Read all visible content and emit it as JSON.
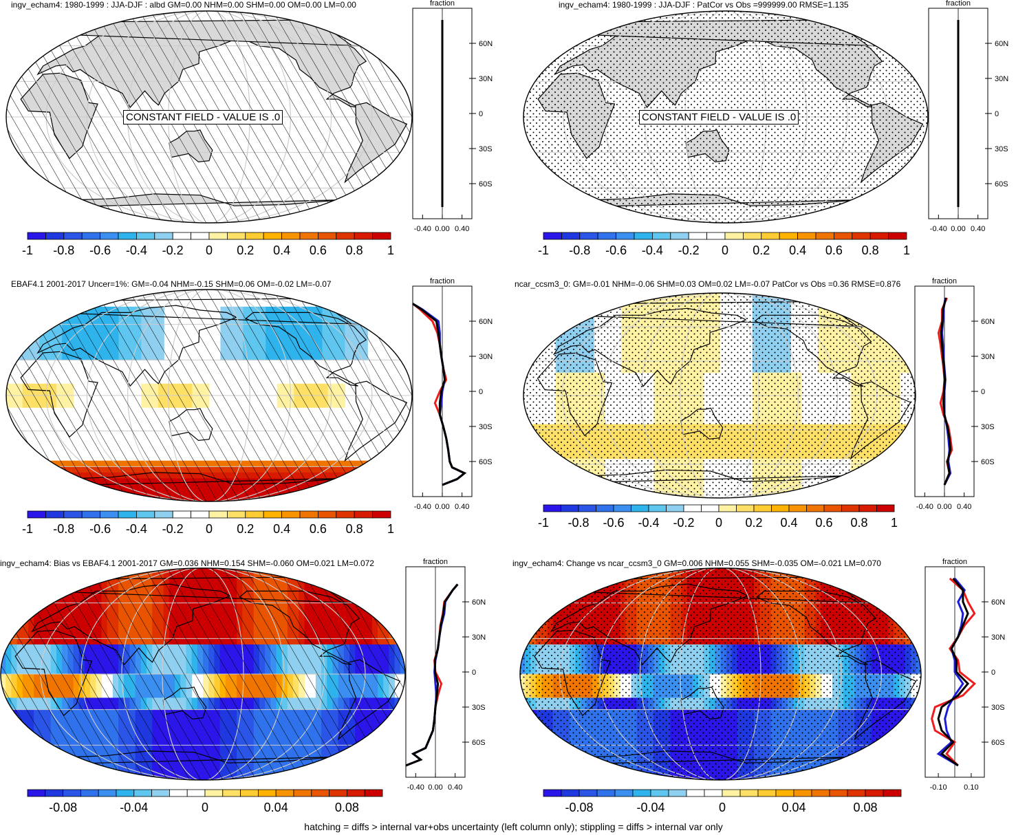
{
  "footer": "hatching = diffs > internal var+obs uncertainty (left column only); stippling = diffs > internal var only",
  "panels": [
    {
      "title": "ingv_echam4: 1980-1999 : JJA-DJF : albd GM=0.00 NHM=0.00 SHM=0.00 OM=0.00 LM=0.00",
      "overlay": "hatch",
      "constant_label": "CONSTANT FIELD - VALUE IS .0",
      "profile_label": "fraction",
      "profile_lat_ticks": [
        "60N",
        "30N",
        "0",
        "30S",
        "60S"
      ],
      "profile_x_ticks": [
        "-0.40",
        "0.00",
        "0.40"
      ],
      "colorbar_labels": [
        "-1",
        "-0.8",
        "-0.6",
        "-0.4",
        "-0.2",
        "0",
        "0.2",
        "0.4",
        "0.6",
        "0.8",
        "1"
      ]
    },
    {
      "title": "ingv_echam4: 1980-1999 : JJA-DJF : PatCor vs Obs =999999.00 RMSE=1.135",
      "overlay": "stipple",
      "constant_label": "CONSTANT FIELD - VALUE IS .0",
      "profile_label": "fraction",
      "profile_lat_ticks": [
        "60N",
        "30N",
        "0",
        "30S",
        "60S"
      ],
      "profile_x_ticks": [
        "-0.40",
        "0.00",
        "0.40"
      ],
      "colorbar_labels": [
        "-1",
        "-0.8",
        "-0.6",
        "-0.4",
        "-0.2",
        "0",
        "0.2",
        "0.4",
        "0.6",
        "0.8",
        "1"
      ]
    },
    {
      "title": "EBAF4.1 2001-2017 Uncer=1%: GM=-0.04 NHM=-0.15 SHM=0.06 OM=-0.02 LM=-0.07",
      "overlay": "hatch",
      "profile_label": "fraction",
      "profile_lat_ticks": [
        "60N",
        "30N",
        "0",
        "30S",
        "60S"
      ],
      "profile_x_ticks": [
        "-0.40",
        "0.00",
        "0.40"
      ],
      "colorbar_labels": [
        "-1",
        "-0.8",
        "-0.6",
        "-0.4",
        "-0.2",
        "0",
        "0.2",
        "0.4",
        "0.6",
        "0.8",
        "1"
      ]
    },
    {
      "title": "ncar_ccsm3_0: GM=-0.01 NHM=-0.06 SHM=0.03 OM=0.02 LM=-0.07 PatCor vs Obs =0.36 RMSE=0.876",
      "overlay": "stipple",
      "profile_label": "fraction",
      "profile_lat_ticks": [
        "60N",
        "30N",
        "0",
        "30S",
        "60S"
      ],
      "profile_x_ticks": [
        "-0.40",
        "0.00",
        "0.40"
      ],
      "colorbar_labels": [
        "-1",
        "-0.8",
        "-0.6",
        "-0.4",
        "-0.2",
        "0",
        "0.2",
        "0.4",
        "0.6",
        "0.8",
        "1"
      ]
    },
    {
      "title": "ingv_echam4: Bias vs EBAF4.1 2001-2017 GM=0.036 NHM=0.154 SHM=-0.060 OM=0.021 LM=0.072",
      "overlay": "hatch",
      "profile_label": "fraction",
      "profile_lat_ticks": [
        "60N",
        "30N",
        "0",
        "30S",
        "60S"
      ],
      "profile_x_ticks": [
        "-0.40",
        "0.00",
        "0.40"
      ],
      "colorbar_labels": [
        "-0.08",
        "-0.04",
        "0",
        "0.04",
        "0.08"
      ]
    },
    {
      "title": "ingv_echam4: Change vs ncar_ccsm3_0 GM=0.006 NHM=0.055 SHM=-0.035 OM=-0.021 LM=0.070",
      "overlay": "stipple",
      "profile_label": "fraction",
      "profile_lat_ticks": [
        "60N",
        "30N",
        "0",
        "30S",
        "60S"
      ],
      "profile_x_ticks": [
        "-0.10",
        "0.10"
      ],
      "colorbar_labels": [
        "-0.08",
        "-0.04",
        "0",
        "0.04",
        "0.08"
      ]
    }
  ],
  "colors": {
    "palette": [
      "#2a16e8",
      "#1f38e0",
      "#2a55e6",
      "#2f72ec",
      "#3a8ff0",
      "#2fb3ec",
      "#5fc6f0",
      "#8fcfef",
      "#ffffff",
      "#ffffff",
      "#fff2a3",
      "#ffe066",
      "#ffcd33",
      "#ffb300",
      "#f99300",
      "#f07400",
      "#e95400",
      "#e03400",
      "#d81b00",
      "#cc0000"
    ],
    "land": "#d9d9d9",
    "profile_red": "#ee1c1c",
    "profile_blue": "#1c1cd8",
    "profile_black": "#000000"
  },
  "chart_data": [
    {
      "type": "heatmap",
      "title": "ingv_echam4: 1980-1999 : JJA-DJF : albd GM=0.00 NHM=0.00 SHM=0.00 OM=0.00 LM=0.00",
      "annotation": "CONSTANT FIELD - VALUE IS .0",
      "colorbar": {
        "range": [
          -1,
          1
        ],
        "ticks": [
          -1,
          -0.8,
          -0.6,
          -0.4,
          -0.2,
          0,
          0.2,
          0.4,
          0.6,
          0.8,
          1
        ]
      },
      "zonal_profile": {
        "xlabel": "fraction",
        "xlim": [
          -0.6,
          0.6
        ],
        "lat": [
          -80,
          80
        ],
        "series": [
          {
            "values": [
              0,
              0
            ]
          }
        ]
      }
    },
    {
      "type": "heatmap",
      "title": "ingv_echam4: 1980-1999 : JJA-DJF : PatCor vs Obs =999999.00 RMSE=1.135",
      "annotation": "CONSTANT FIELD - VALUE IS .0",
      "colorbar": {
        "range": [
          -1,
          1
        ],
        "ticks": [
          -1,
          -0.8,
          -0.6,
          -0.4,
          -0.2,
          0,
          0.2,
          0.4,
          0.6,
          0.8,
          1
        ]
      },
      "zonal_profile": {
        "xlabel": "fraction",
        "xlim": [
          -0.6,
          0.6
        ],
        "lat": [
          -80,
          80
        ],
        "series": [
          {
            "values": [
              0,
              0
            ]
          }
        ]
      }
    },
    {
      "type": "heatmap",
      "title": "EBAF4.1 2001-2017 Uncer=1%: GM=-0.04 NHM=-0.15 SHM=0.06 OM=-0.02 LM=-0.07",
      "colorbar": {
        "range": [
          -1,
          1
        ],
        "ticks": [
          -1,
          -0.8,
          -0.6,
          -0.4,
          -0.2,
          0,
          0.2,
          0.4,
          0.6,
          0.8,
          1
        ]
      },
      "zonal_profile": {
        "xlabel": "fraction",
        "xlim": [
          -0.6,
          0.6
        ],
        "lat": [
          -80,
          -75,
          -70,
          -65,
          -60,
          -50,
          -40,
          -30,
          -20,
          -10,
          0,
          10,
          20,
          30,
          40,
          50,
          60,
          70,
          75
        ],
        "series": [
          {
            "color": "red",
            "values": [
              0.0,
              0.3,
              0.45,
              0.2,
              0.15,
              0.12,
              0.08,
              0.02,
              -0.05,
              -0.15,
              -0.05,
              0.08,
              0.02,
              -0.02,
              -0.05,
              -0.1,
              -0.2,
              -0.45,
              -0.6
            ]
          },
          {
            "color": "blue",
            "values": [
              0.0,
              0.3,
              0.45,
              0.2,
              0.15,
              0.12,
              0.08,
              0.02,
              -0.05,
              -0.02,
              0.0,
              0.05,
              0.02,
              -0.02,
              -0.05,
              -0.05,
              -0.08,
              -0.4,
              -0.6
            ]
          },
          {
            "color": "black",
            "values": [
              0.0,
              0.3,
              0.45,
              0.2,
              0.15,
              0.12,
              0.08,
              0.02,
              -0.05,
              -0.05,
              -0.02,
              0.05,
              0.02,
              -0.02,
              -0.05,
              -0.08,
              -0.12,
              -0.42,
              -0.6
            ]
          }
        ]
      }
    },
    {
      "type": "heatmap",
      "title": "ncar_ccsm3_0: GM=-0.01 NHM=-0.06 SHM=0.03 OM=0.02 LM=-0.07 PatCor vs Obs =0.36 RMSE=0.876",
      "colorbar": {
        "range": [
          -1,
          1
        ],
        "ticks": [
          -1,
          -0.8,
          -0.6,
          -0.4,
          -0.2,
          0,
          0.2,
          0.4,
          0.6,
          0.8,
          1
        ]
      },
      "zonal_profile": {
        "xlabel": "fraction",
        "xlim": [
          -0.6,
          0.6
        ],
        "lat": [
          -80,
          -70,
          -60,
          -50,
          -40,
          -30,
          -20,
          -10,
          0,
          10,
          20,
          30,
          40,
          50,
          60,
          70,
          80
        ],
        "series": [
          {
            "color": "red",
            "values": [
              0.0,
              0.1,
              0.05,
              0.15,
              0.12,
              0.08,
              -0.02,
              -0.08,
              -0.02,
              0.0,
              -0.02,
              -0.05,
              -0.08,
              -0.12,
              -0.05,
              -0.05,
              0.05
            ]
          },
          {
            "color": "blue",
            "values": [
              0.0,
              0.12,
              0.08,
              0.1,
              0.08,
              0.05,
              0.0,
              0.0,
              0.0,
              0.02,
              0.0,
              -0.02,
              -0.03,
              -0.05,
              -0.03,
              -0.02,
              0.02
            ]
          },
          {
            "color": "black",
            "values": [
              0.0,
              0.1,
              0.06,
              0.12,
              0.1,
              0.06,
              0.0,
              -0.02,
              -0.01,
              0.01,
              -0.01,
              -0.03,
              -0.05,
              -0.07,
              -0.04,
              -0.03,
              0.03
            ]
          }
        ]
      }
    },
    {
      "type": "heatmap",
      "title": "ingv_echam4: Bias vs EBAF4.1 2001-2017 GM=0.036 NHM=0.154 SHM=-0.060 OM=0.021 LM=0.072",
      "colorbar": {
        "range": [
          -0.1,
          0.1
        ],
        "ticks": [
          -0.08,
          -0.04,
          0,
          0.04,
          0.08
        ]
      },
      "zonal_profile": {
        "xlabel": "fraction",
        "xlim": [
          -0.6,
          0.6
        ],
        "lat": [
          -80,
          -75,
          -70,
          -65,
          -60,
          -50,
          -40,
          -30,
          -20,
          -10,
          0,
          10,
          20,
          30,
          40,
          50,
          60,
          70,
          75
        ],
        "series": [
          {
            "color": "red",
            "values": [
              -0.6,
              -0.3,
              -0.45,
              -0.2,
              -0.15,
              -0.05,
              -0.02,
              0.0,
              0.05,
              0.12,
              0.0,
              -0.02,
              0.05,
              0.08,
              0.1,
              0.15,
              0.18,
              0.35,
              0.45
            ]
          },
          {
            "color": "blue",
            "values": [
              -0.6,
              -0.3,
              -0.45,
              -0.2,
              -0.15,
              -0.05,
              -0.02,
              0.0,
              0.02,
              0.0,
              -0.02,
              0.0,
              0.05,
              0.08,
              0.12,
              0.18,
              0.2,
              0.35,
              0.45
            ]
          },
          {
            "color": "black",
            "values": [
              -0.6,
              -0.3,
              -0.45,
              -0.2,
              -0.15,
              -0.05,
              -0.02,
              0.0,
              0.03,
              0.05,
              -0.01,
              -0.01,
              0.05,
              0.08,
              0.11,
              0.16,
              0.19,
              0.35,
              0.45
            ]
          }
        ]
      }
    },
    {
      "type": "heatmap",
      "title": "ingv_echam4: Change vs ncar_ccsm3_0 GM=0.006 NHM=0.055 SHM=-0.035 OM=-0.021 LM=0.070",
      "colorbar": {
        "range": [
          -0.1,
          0.1
        ],
        "ticks": [
          -0.08,
          -0.04,
          0,
          0.04,
          0.08
        ]
      },
      "zonal_profile": {
        "xlabel": "fraction",
        "xlim": [
          -0.18,
          0.18
        ],
        "lat": [
          -80,
          -70,
          -60,
          -50,
          -40,
          -30,
          -20,
          -10,
          0,
          10,
          20,
          30,
          40,
          50,
          60,
          70,
          80
        ],
        "series": [
          {
            "color": "red",
            "values": [
              0.02,
              -0.05,
              0.0,
              -0.12,
              -0.14,
              -0.12,
              0.05,
              0.12,
              0.03,
              0.02,
              -0.03,
              0.02,
              0.06,
              0.12,
              0.08,
              0.05,
              -0.03
            ]
          },
          {
            "color": "blue",
            "values": [
              0.02,
              -0.1,
              -0.02,
              -0.05,
              -0.06,
              -0.04,
              0.0,
              0.05,
              0.0,
              0.0,
              -0.02,
              0.02,
              0.04,
              0.05,
              0.02,
              0.06,
              0.0
            ]
          },
          {
            "color": "black",
            "values": [
              0.02,
              -0.08,
              -0.01,
              -0.08,
              -0.1,
              -0.08,
              0.02,
              0.08,
              0.01,
              0.01,
              -0.02,
              0.02,
              0.05,
              0.08,
              0.05,
              0.05,
              -0.01
            ]
          }
        ]
      }
    }
  ]
}
